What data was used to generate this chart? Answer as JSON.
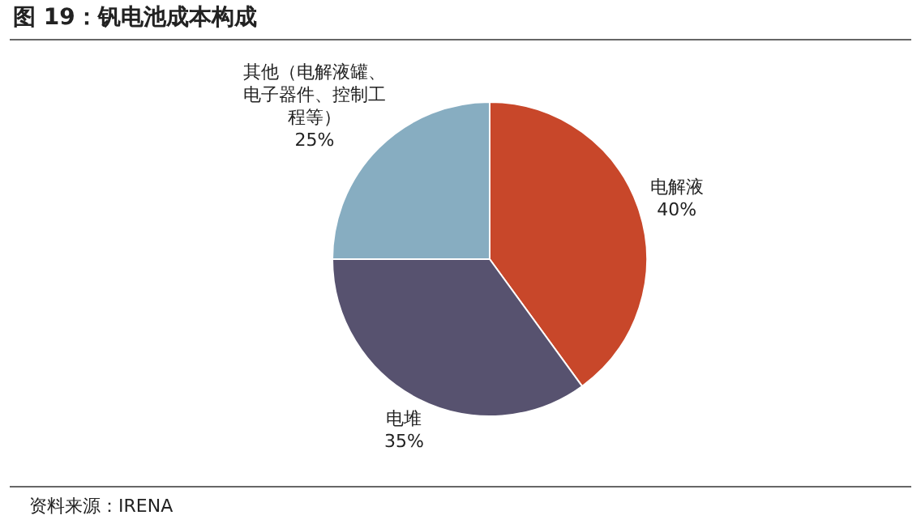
{
  "chart_data": {
    "type": "pie",
    "title": "图 19：钒电池成本构成",
    "categories": [
      "电解液",
      "电堆",
      "其他（电解液罐、电子器件、控制工程等）"
    ],
    "values": [
      40,
      35,
      25
    ],
    "value_labels": [
      "40%",
      "35%",
      "25%"
    ],
    "colors": [
      "#c8472a",
      "#57526f",
      "#87adc1"
    ],
    "annotations": [
      "资料来源：IRENA"
    ]
  }
}
